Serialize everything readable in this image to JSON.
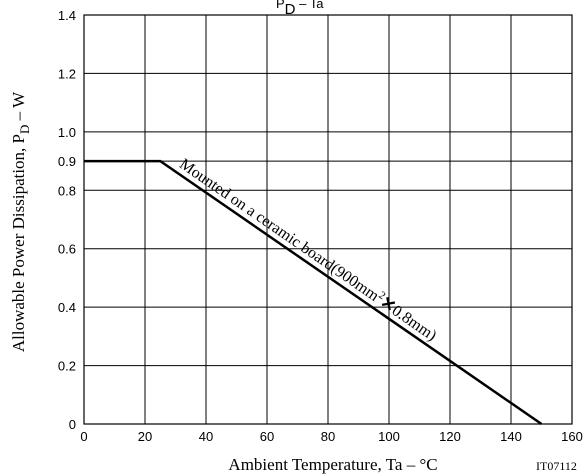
{
  "chart_data": {
    "type": "line",
    "title_main": "P",
    "title_sub": "D",
    "title_rest": " – Ta",
    "xlabel": "Ambient Temperature, Ta  –  °C",
    "ylabel_main": "Allowable Power Dissipation, P",
    "ylabel_sub": "D",
    "ylabel_rest": " – W",
    "figure_id": "IT07112",
    "xlim": [
      0,
      160
    ],
    "ylim": [
      0,
      1.4
    ],
    "x_ticks": [
      "0",
      "20",
      "40",
      "60",
      "80",
      "100",
      "120",
      "140",
      "160"
    ],
    "y_ticks": [
      "0",
      "0.2",
      "0.4",
      "0.6",
      "0.8",
      "0.9",
      "1.0",
      "1.2",
      "1.4"
    ],
    "grid": true,
    "annotation_pre": "Mounted on a ceramic board(900mm",
    "annotation_sup": "2",
    "annotation_mid": "✕",
    "annotation_post": "0.8mm)",
    "series": [
      {
        "x": [
          0,
          25,
          150
        ],
        "y": [
          0.9,
          0.9,
          0
        ]
      }
    ]
  }
}
